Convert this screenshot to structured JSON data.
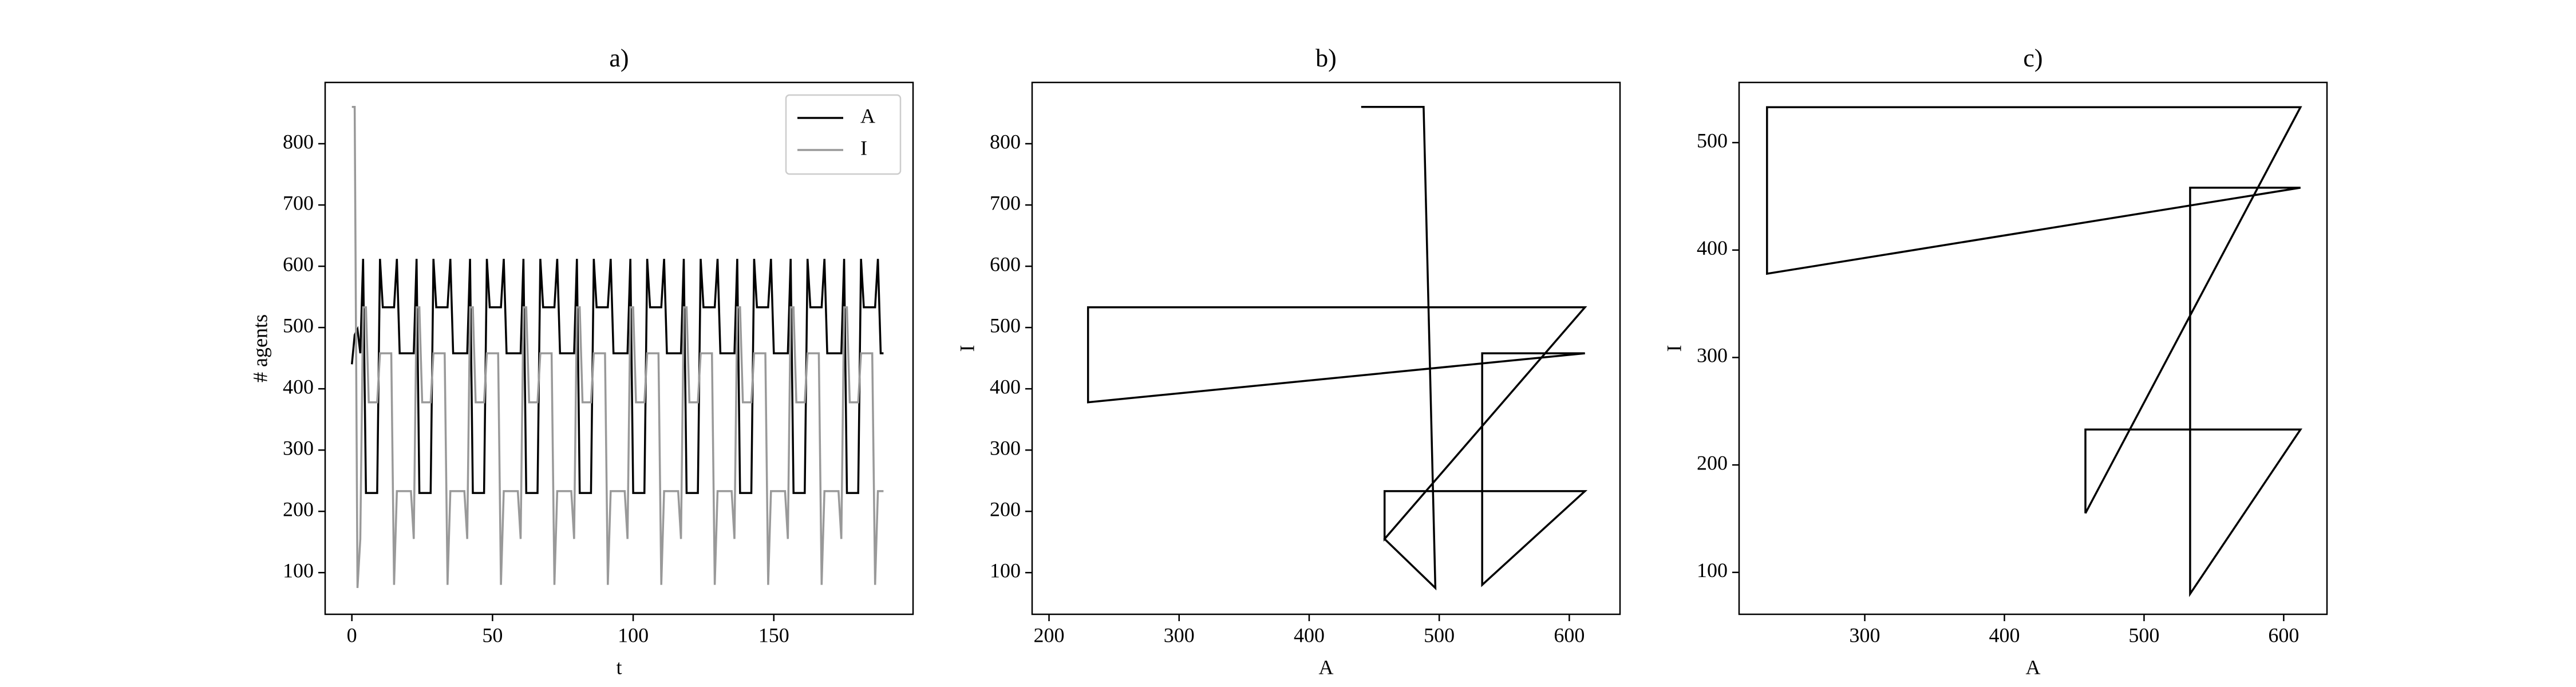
{
  "chart_data": [
    {
      "type": "line",
      "title": "a)",
      "xlabel": "t",
      "ylabel": "# agents",
      "xlim": [
        -9.5,
        199.5
      ],
      "xticks": [
        0,
        50,
        100,
        150
      ],
      "ylim": [
        32,
        900
      ],
      "yticks": [
        100,
        200,
        300,
        400,
        500,
        600,
        700,
        800
      ],
      "legend": "upper right",
      "x": [
        0,
        1,
        2,
        3,
        4,
        5,
        6,
        7,
        8,
        9,
        10,
        11,
        12,
        13,
        14,
        15,
        16,
        17,
        18,
        19,
        20,
        21,
        22,
        23,
        24,
        25,
        26,
        27,
        28,
        29,
        30,
        31,
        32,
        33,
        34,
        35,
        36,
        37,
        38,
        39,
        40,
        41,
        42,
        43,
        44,
        45,
        46,
        47,
        48,
        49,
        50,
        51,
        52,
        53,
        54,
        55,
        56,
        57,
        58,
        59,
        60,
        61,
        62,
        63,
        64,
        65,
        66,
        67,
        68,
        69,
        70,
        71,
        72,
        73,
        74,
        75,
        76,
        77,
        78,
        79,
        80,
        81,
        82,
        83,
        84,
        85,
        86,
        87,
        88,
        89,
        90,
        91,
        92,
        93,
        94,
        95,
        96,
        97,
        98,
        99,
        100,
        101,
        102,
        103,
        104,
        105,
        106,
        107,
        108,
        109,
        110,
        111,
        112,
        113,
        114,
        115,
        116,
        117,
        118,
        119,
        120,
        121,
        122,
        123,
        124,
        125,
        126,
        127,
        128,
        129,
        130,
        131,
        132,
        133,
        134,
        135,
        136,
        137,
        138,
        139,
        140,
        141,
        142,
        143,
        144,
        145,
        146,
        147,
        148,
        149,
        150,
        151,
        152,
        153,
        154,
        155,
        156,
        157,
        158,
        159,
        160,
        161,
        162,
        163,
        164,
        165,
        166,
        167,
        168,
        169,
        170,
        171,
        172,
        173,
        174,
        175,
        176,
        177,
        178,
        179,
        180,
        181,
        182,
        183,
        184,
        185,
        186,
        187,
        188,
        189
      ],
      "series": [
        {
          "name": "A",
          "color": "#000000",
          "values": [
            440,
            488,
            497,
            458,
            612,
            230,
            230,
            230,
            230,
            230,
            612,
            533,
            533,
            533,
            533,
            533,
            612,
            458,
            458,
            458,
            458,
            458,
            458,
            612,
            230,
            230,
            230,
            230,
            230,
            612,
            533,
            533,
            533,
            533,
            533,
            612,
            458,
            458,
            458,
            458,
            458,
            458,
            612,
            230,
            230,
            230,
            230,
            230,
            612,
            533,
            533,
            533,
            533,
            533,
            612,
            458,
            458,
            458,
            458,
            458,
            458,
            612,
            230,
            230,
            230,
            230,
            230,
            612,
            533,
            533,
            533,
            533,
            533,
            612,
            458,
            458,
            458,
            458,
            458,
            458,
            612,
            230,
            230,
            230,
            230,
            230,
            612,
            533,
            533,
            533,
            533,
            533,
            612,
            458,
            458,
            458,
            458,
            458,
            458,
            612,
            230,
            230,
            230,
            230,
            230,
            612,
            533,
            533,
            533,
            533,
            533,
            612,
            458,
            458,
            458,
            458,
            458,
            458,
            612,
            230,
            230,
            230,
            230,
            230,
            612,
            533,
            533,
            533,
            533,
            533,
            612,
            458,
            458,
            458,
            458,
            458,
            458,
            612,
            230,
            230,
            230,
            230,
            230,
            612,
            533,
            533,
            533,
            533,
            533,
            612,
            458,
            458,
            458,
            458,
            458,
            458,
            612,
            230,
            230,
            230,
            230,
            230,
            612,
            533,
            533,
            533,
            533,
            533,
            612,
            458,
            458,
            458,
            458,
            458,
            458,
            612,
            230,
            230,
            230,
            230,
            230,
            612,
            533,
            533,
            533,
            533,
            533,
            612,
            458,
            458
          ]
        },
        {
          "name": "I",
          "color": "#999999",
          "values": [
            860,
            860,
            75,
            155,
            533,
            533,
            378,
            378,
            378,
            378,
            458,
            458,
            458,
            458,
            458,
            80,
            233,
            233,
            233,
            233,
            233,
            233,
            155,
            533,
            533,
            378,
            378,
            378,
            378,
            458,
            458,
            458,
            458,
            458,
            80,
            233,
            233,
            233,
            233,
            233,
            233,
            155,
            533,
            533,
            378,
            378,
            378,
            378,
            458,
            458,
            458,
            458,
            458,
            80,
            233,
            233,
            233,
            233,
            233,
            233,
            155,
            533,
            533,
            378,
            378,
            378,
            378,
            458,
            458,
            458,
            458,
            458,
            80,
            233,
            233,
            233,
            233,
            233,
            233,
            155,
            533,
            533,
            378,
            378,
            378,
            378,
            458,
            458,
            458,
            458,
            458,
            80,
            233,
            233,
            233,
            233,
            233,
            233,
            155,
            533,
            533,
            378,
            378,
            378,
            378,
            458,
            458,
            458,
            458,
            458,
            80,
            233,
            233,
            233,
            233,
            233,
            233,
            155,
            533,
            533,
            378,
            378,
            378,
            378,
            458,
            458,
            458,
            458,
            458,
            80,
            233,
            233,
            233,
            233,
            233,
            233,
            155,
            533,
            533,
            378,
            378,
            378,
            378,
            458,
            458,
            458,
            458,
            458,
            80,
            233,
            233,
            233,
            233,
            233,
            233,
            155,
            533,
            533,
            378,
            378,
            378,
            378,
            458,
            458,
            458,
            458,
            458,
            80,
            233,
            233,
            233,
            233,
            233,
            233,
            155,
            533,
            533,
            378,
            378,
            378,
            378,
            458,
            458,
            458,
            458,
            458,
            80,
            233,
            233,
            233
          ]
        }
      ]
    },
    {
      "type": "line",
      "title": "b)",
      "xlabel": "A",
      "ylabel": "I",
      "xlim": [
        187,
        639
      ],
      "xticks": [
        200,
        300,
        400,
        500,
        600
      ],
      "ylim": [
        32,
        900
      ],
      "yticks": [
        100,
        200,
        300,
        400,
        500,
        600,
        700,
        800
      ],
      "x": [
        440,
        488,
        497,
        458,
        612,
        230,
        230,
        230,
        230,
        230,
        612,
        533,
        533,
        533,
        533,
        533,
        612,
        458,
        458,
        458,
        458,
        458,
        458,
        612,
        230,
        230,
        230,
        230,
        230,
        612,
        533,
        533,
        533,
        533,
        533,
        612,
        458,
        458,
        458,
        458,
        458,
        458,
        612,
        230,
        230,
        230,
        230,
        230,
        612,
        533,
        533,
        533,
        533,
        533,
        612,
        458,
        458,
        458,
        458,
        458,
        458,
        612,
        230,
        230,
        230,
        230,
        230,
        612,
        533,
        533,
        533,
        533,
        533,
        612,
        458,
        458,
        458,
        458,
        458,
        458,
        612,
        230,
        230,
        230,
        230,
        230,
        612,
        533,
        533,
        533,
        533,
        533,
        612,
        458,
        458,
        458,
        458,
        458,
        458,
        612,
        230,
        230,
        230,
        230,
        230,
        612,
        533,
        533,
        533,
        533,
        533,
        612,
        458,
        458,
        458,
        458,
        458,
        458,
        612,
        230,
        230,
        230,
        230,
        230,
        612,
        533,
        533,
        533,
        533,
        533,
        612,
        458,
        458,
        458,
        458,
        458,
        458,
        612,
        230,
        230,
        230,
        230,
        230,
        612,
        533,
        533,
        533,
        533,
        533,
        612,
        458,
        458,
        458,
        458,
        458,
        458,
        612,
        230,
        230,
        230,
        230,
        230,
        612,
        533,
        533,
        533,
        533,
        533,
        612,
        458,
        458,
        458,
        458,
        458,
        458,
        612,
        230,
        230,
        230,
        230,
        230,
        612,
        533,
        533,
        533,
        533,
        533,
        612,
        458,
        458
      ],
      "series": [
        {
          "color": "#000000",
          "values": [
            860,
            860,
            75,
            155,
            533,
            533,
            378,
            378,
            378,
            378,
            458,
            458,
            458,
            458,
            458,
            80,
            233,
            233,
            233,
            233,
            233,
            233,
            155,
            533,
            533,
            378,
            378,
            378,
            378,
            458,
            458,
            458,
            458,
            458,
            80,
            233,
            233,
            233,
            233,
            233,
            233,
            155,
            533,
            533,
            378,
            378,
            378,
            378,
            458,
            458,
            458,
            458,
            458,
            80,
            233,
            233,
            233,
            233,
            233,
            233,
            155,
            533,
            533,
            378,
            378,
            378,
            378,
            458,
            458,
            458,
            458,
            458,
            80,
            233,
            233,
            233,
            233,
            233,
            233,
            155,
            533,
            533,
            378,
            378,
            378,
            378,
            458,
            458,
            458,
            458,
            458,
            80,
            233,
            233,
            233,
            233,
            233,
            233,
            155,
            533,
            533,
            378,
            378,
            378,
            378,
            458,
            458,
            458,
            458,
            458,
            80,
            233,
            233,
            233,
            233,
            233,
            233,
            155,
            533,
            533,
            378,
            378,
            378,
            378,
            458,
            458,
            458,
            458,
            458,
            80,
            233,
            233,
            233,
            233,
            233,
            233,
            155,
            533,
            533,
            378,
            378,
            378,
            378,
            458,
            458,
            458,
            458,
            458,
            80,
            233,
            233,
            233,
            233,
            233,
            233,
            155,
            533,
            533,
            378,
            378,
            378,
            378,
            458,
            458,
            458,
            458,
            458,
            80,
            233,
            233,
            233,
            233,
            233,
            233,
            155,
            533,
            533,
            378,
            378,
            378,
            378,
            458,
            458,
            458,
            458,
            458,
            80,
            233,
            233,
            233
          ]
        }
      ]
    },
    {
      "type": "line",
      "title": "c)",
      "xlabel": "A",
      "ylabel": "I",
      "xlim": [
        210,
        631
      ],
      "xticks": [
        300,
        400,
        500,
        600
      ],
      "ylim": [
        61,
        556
      ],
      "yticks": [
        100,
        200,
        300,
        400,
        500
      ],
      "x": [
        458,
        612,
        230,
        230,
        612,
        533,
        533,
        612,
        458,
        458
      ],
      "series": [
        {
          "color": "#000000",
          "values": [
            155,
            533,
            533,
            378,
            458,
            458,
            80,
            233,
            233,
            155
          ]
        }
      ]
    }
  ]
}
